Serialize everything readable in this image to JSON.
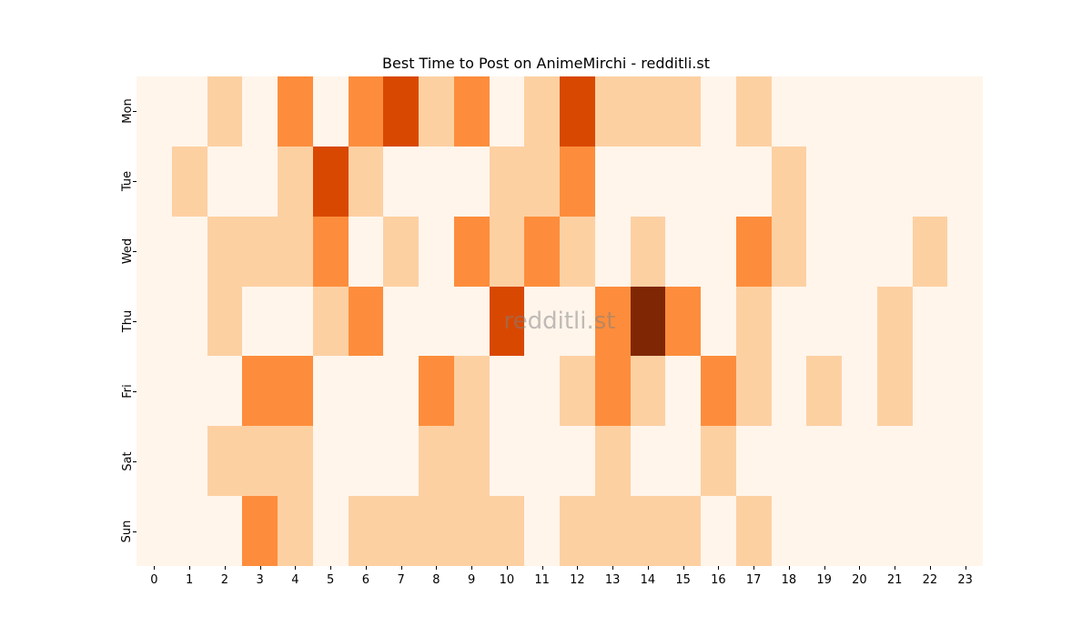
{
  "chart_data": {
    "type": "heatmap",
    "title": "Best Time to Post on AnimeMirchi - redditli.st",
    "xlabel": "",
    "ylabel": "",
    "x_categories": [
      "0",
      "1",
      "2",
      "3",
      "4",
      "5",
      "6",
      "7",
      "8",
      "9",
      "10",
      "11",
      "12",
      "13",
      "14",
      "15",
      "16",
      "17",
      "18",
      "19",
      "20",
      "21",
      "22",
      "23"
    ],
    "y_categories": [
      "Mon",
      "Tue",
      "Wed",
      "Thu",
      "Fri",
      "Sat",
      "Sun"
    ],
    "value_scale": "relative intensity levels 0 (lowest) to 4 (highest)",
    "values": [
      [
        0,
        0,
        1,
        0,
        2,
        0,
        2,
        3,
        1,
        2,
        0,
        1,
        3,
        1,
        1,
        1,
        0,
        1,
        0,
        0,
        0,
        0,
        0,
        0
      ],
      [
        0,
        1,
        0,
        0,
        1,
        3,
        1,
        0,
        0,
        0,
        1,
        1,
        2,
        0,
        0,
        0,
        0,
        0,
        1,
        0,
        0,
        0,
        0,
        0
      ],
      [
        0,
        0,
        1,
        1,
        1,
        2,
        0,
        1,
        0,
        2,
        1,
        2,
        1,
        0,
        1,
        0,
        0,
        2,
        1,
        0,
        0,
        0,
        1,
        0
      ],
      [
        0,
        0,
        1,
        0,
        0,
        1,
        2,
        0,
        0,
        0,
        3,
        0,
        0,
        2,
        4,
        2,
        0,
        1,
        0,
        0,
        0,
        1,
        0,
        0
      ],
      [
        0,
        0,
        0,
        2,
        2,
        0,
        0,
        0,
        2,
        1,
        0,
        0,
        1,
        2,
        1,
        0,
        2,
        1,
        0,
        1,
        0,
        1,
        0,
        0
      ],
      [
        0,
        0,
        1,
        1,
        1,
        0,
        0,
        0,
        1,
        1,
        0,
        0,
        0,
        1,
        0,
        0,
        1,
        0,
        0,
        0,
        0,
        0,
        0,
        0
      ],
      [
        0,
        0,
        0,
        2,
        1,
        0,
        1,
        1,
        1,
        1,
        1,
        0,
        1,
        1,
        1,
        1,
        0,
        1,
        0,
        0,
        0,
        0,
        0,
        0
      ]
    ],
    "colormap": [
      "#fff5eb",
      "#fdd0a2",
      "#fd8d3c",
      "#d94801",
      "#7f2704"
    ],
    "colorbar": false,
    "grid": false
  },
  "watermark": "redditli.st"
}
